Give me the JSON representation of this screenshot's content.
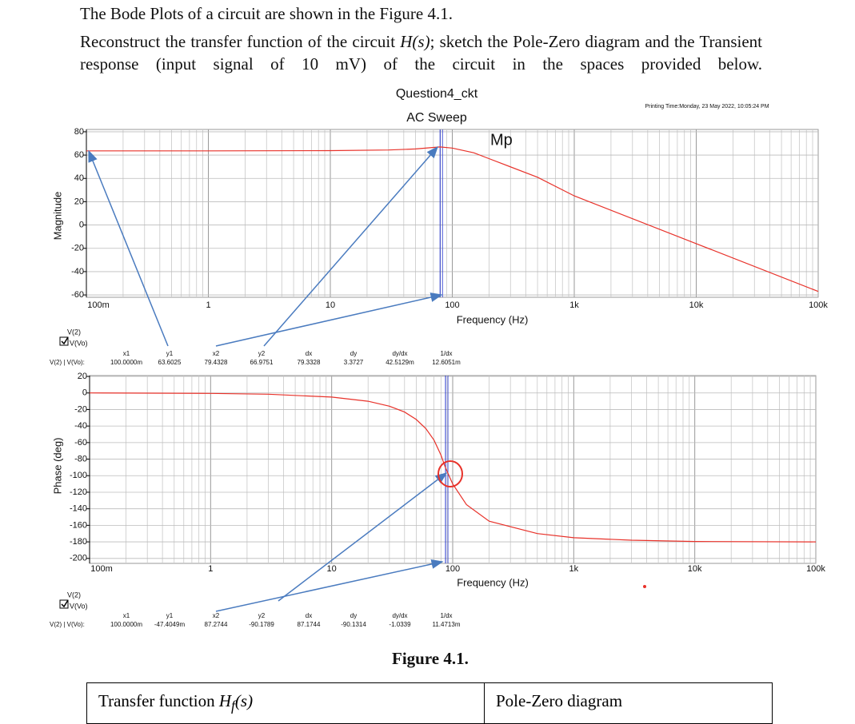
{
  "document": {
    "intro": "The Bode Plots of a circuit are shown in the Figure 4.1.",
    "para": [
      "Reconstruct the transfer function of the circuit",
      "H(s)",
      "; sketch the Pole-Zero diagram and the Transient response (input signal of 10 mV) of the circuit in the spaces provided below."
    ],
    "figure_caption": "Figure 4.1.",
    "table": {
      "cells": [
        [
          "Transfer function",
          "H",
          "f",
          "(s)"
        ],
        [
          "Pole-Zero diagram"
        ]
      ]
    }
  },
  "chart_data": [
    {
      "type": "line",
      "title": "Question4_ckt",
      "subtitle": "AC Sweep",
      "printing_time": "Printing Time:Monday, 23 May 2022, 10:05:24 PM",
      "ylabel": "Magnitude",
      "xlabel": "Frequency (Hz)",
      "xscale": "log",
      "grid": true,
      "x": [
        0.1,
        1,
        10,
        30,
        50,
        70,
        79.43,
        100,
        150,
        200,
        500,
        1000,
        10000,
        100000
      ],
      "series": [
        {
          "name": "V(Vo)",
          "color": "#e8322a",
          "values": [
            63.6,
            63.6,
            63.8,
            64.4,
            65.3,
            66.6,
            67,
            66,
            62,
            57,
            41,
            25,
            -16,
            -57
          ]
        }
      ],
      "legend_title": "V(2)",
      "xlim": [
        0.1,
        100000
      ],
      "ylim": [
        -62,
        82
      ],
      "xticks": [
        {
          "value": 0.1,
          "label": "100m"
        },
        1,
        10,
        100,
        {
          "value": 1000,
          "label": "1k"
        },
        {
          "value": 10000,
          "label": "10k"
        },
        {
          "value": 100000,
          "label": "100k"
        }
      ],
      "yticks": [
        80,
        60,
        40,
        20,
        0,
        -20,
        -40,
        -60
      ],
      "cursor_x": 79.4328,
      "annotation": "Mp",
      "cursor_table": {
        "header": [
          "x1",
          "y1",
          "x2",
          "y2",
          "dx",
          "dy",
          "dy/dx",
          "1/dx"
        ],
        "row_label": "V(2) | V(Vo):",
        "values": [
          "100.0000m",
          "63.6025",
          "79.4328",
          "66.9751",
          "79.3328",
          "3.3727",
          "42.5129m",
          "12.6051m"
        ]
      }
    },
    {
      "type": "line",
      "ylabel": "Phase (deg)",
      "xlabel": "Frequency (Hz)",
      "xscale": "log",
      "grid": true,
      "x": [
        0.1,
        1,
        3,
        10,
        20,
        30,
        40,
        50,
        60,
        70,
        80,
        87,
        100,
        130,
        200,
        500,
        1000,
        3000,
        10000,
        100000
      ],
      "series": [
        {
          "name": "V(Vo)",
          "color": "#e8322a",
          "values": [
            0,
            -0.5,
            -1.5,
            -5,
            -10,
            -16,
            -23,
            -32,
            -43,
            -57,
            -75,
            -90,
            -110,
            -135,
            -155,
            -170,
            -175,
            -178,
            -179.5,
            -180
          ]
        }
      ],
      "legend_title": "V(2)",
      "xlim": [
        0.1,
        100000
      ],
      "ylim": [
        -206,
        21
      ],
      "xticks": [
        {
          "value": 0.1,
          "label": "100m"
        },
        1,
        10,
        100,
        {
          "value": 1000,
          "label": "1k"
        },
        {
          "value": 10000,
          "label": "10k"
        },
        {
          "value": 100000,
          "label": "100k"
        }
      ],
      "yticks": [
        20,
        0,
        -20,
        -40,
        -60,
        -80,
        -100,
        -120,
        -140,
        -160,
        -180,
        -200
      ],
      "cursor_x": 87.2744,
      "cursor_table": {
        "header": [
          "x1",
          "y1",
          "x2",
          "y2",
          "dx",
          "dy",
          "dy/dx",
          "1/dx"
        ],
        "row_label": "V(2) | V(Vo):",
        "values": [
          "100.0000m",
          "-47.4049m",
          "87.2744",
          "-90.1789",
          "87.1744",
          "-90.1314",
          "-1.0339",
          "11.4713m"
        ]
      }
    }
  ]
}
